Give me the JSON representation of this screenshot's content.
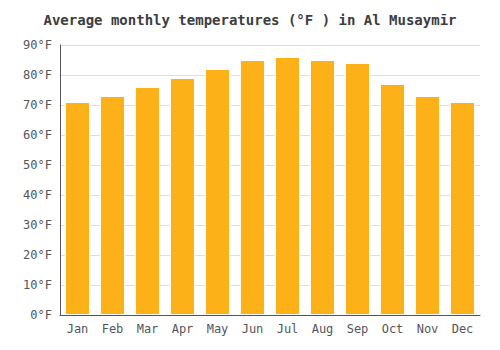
{
  "chart_data": {
    "type": "bar",
    "title": "Average monthly temperatures (°F ) in Al Musaymīr",
    "categories": [
      "Jan",
      "Feb",
      "Mar",
      "Apr",
      "May",
      "Jun",
      "Jul",
      "Aug",
      "Sep",
      "Oct",
      "Nov",
      "Dec"
    ],
    "values": [
      71,
      73,
      76,
      79,
      82,
      85,
      86,
      85,
      84,
      77,
      73,
      71
    ],
    "color": "#FBB117",
    "ylim": [
      0,
      90
    ],
    "yticks": [
      {
        "value": 0,
        "label": "0°F"
      },
      {
        "value": 10,
        "label": "10°F"
      },
      {
        "value": 20,
        "label": "20°F"
      },
      {
        "value": 30,
        "label": "30°F"
      },
      {
        "value": 40,
        "label": "40°F"
      },
      {
        "value": 50,
        "label": "50°F"
      },
      {
        "value": 60,
        "label": "60°F"
      },
      {
        "value": 70,
        "label": "70°F"
      },
      {
        "value": 80,
        "label": "80°F"
      },
      {
        "value": 90,
        "label": "90°F"
      }
    ],
    "grid": true
  }
}
